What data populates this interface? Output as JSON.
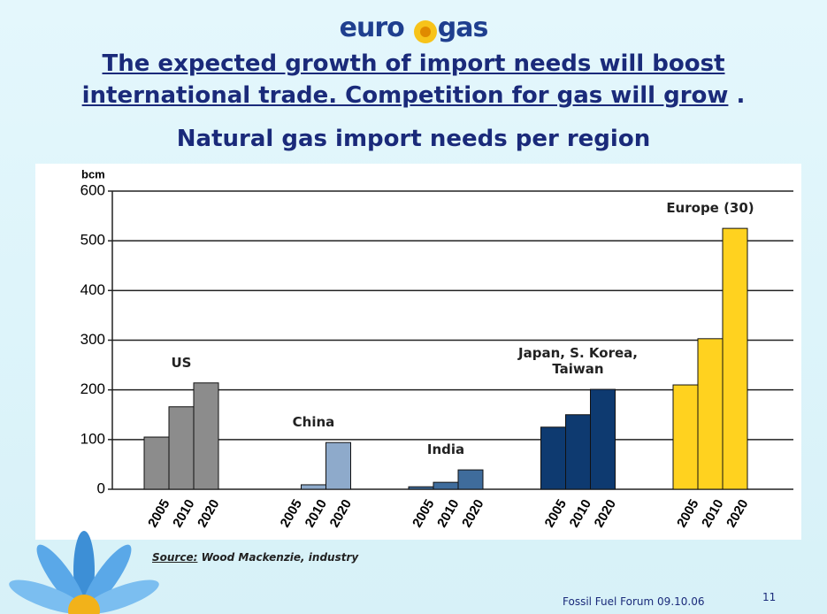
{
  "logo": {
    "left": "euro",
    "right": "gas"
  },
  "headline": {
    "lines": [
      "The expected growth of import needs  will boost",
      "international trade. Competition for gas will grow"
    ],
    "end": "."
  },
  "chart_data": {
    "type": "bar",
    "title": "Natural gas import needs per region",
    "y_label": "bcm",
    "categories": [
      "2005",
      "2010",
      "2020"
    ],
    "groups": [
      {
        "label": "US",
        "color": "#8c8c8c",
        "values": [
          105,
          166,
          214
        ]
      },
      {
        "label": "China",
        "color": "#8eaacb",
        "values": [
          0,
          9,
          94
        ]
      },
      {
        "label": "India",
        "color": "#3f6c9c",
        "values": [
          5,
          14,
          39
        ]
      },
      {
        "label": "Japan, S. Korea, Taiwan",
        "color": "#0e3a70",
        "values": [
          125,
          150,
          201
        ]
      },
      {
        "label": "Europe (30)",
        "color": "#ffd21f",
        "values": [
          210,
          303,
          525
        ]
      }
    ],
    "ylim": [
      0,
      600
    ],
    "yticks": [
      0,
      100,
      200,
      300,
      400,
      500,
      600
    ],
    "grid": true
  },
  "source": {
    "label": "Source:",
    "text": "Wood Mackenzie, industry"
  },
  "footer": {
    "event": "Fossil Fuel Forum 09.10.06",
    "page": "11"
  }
}
